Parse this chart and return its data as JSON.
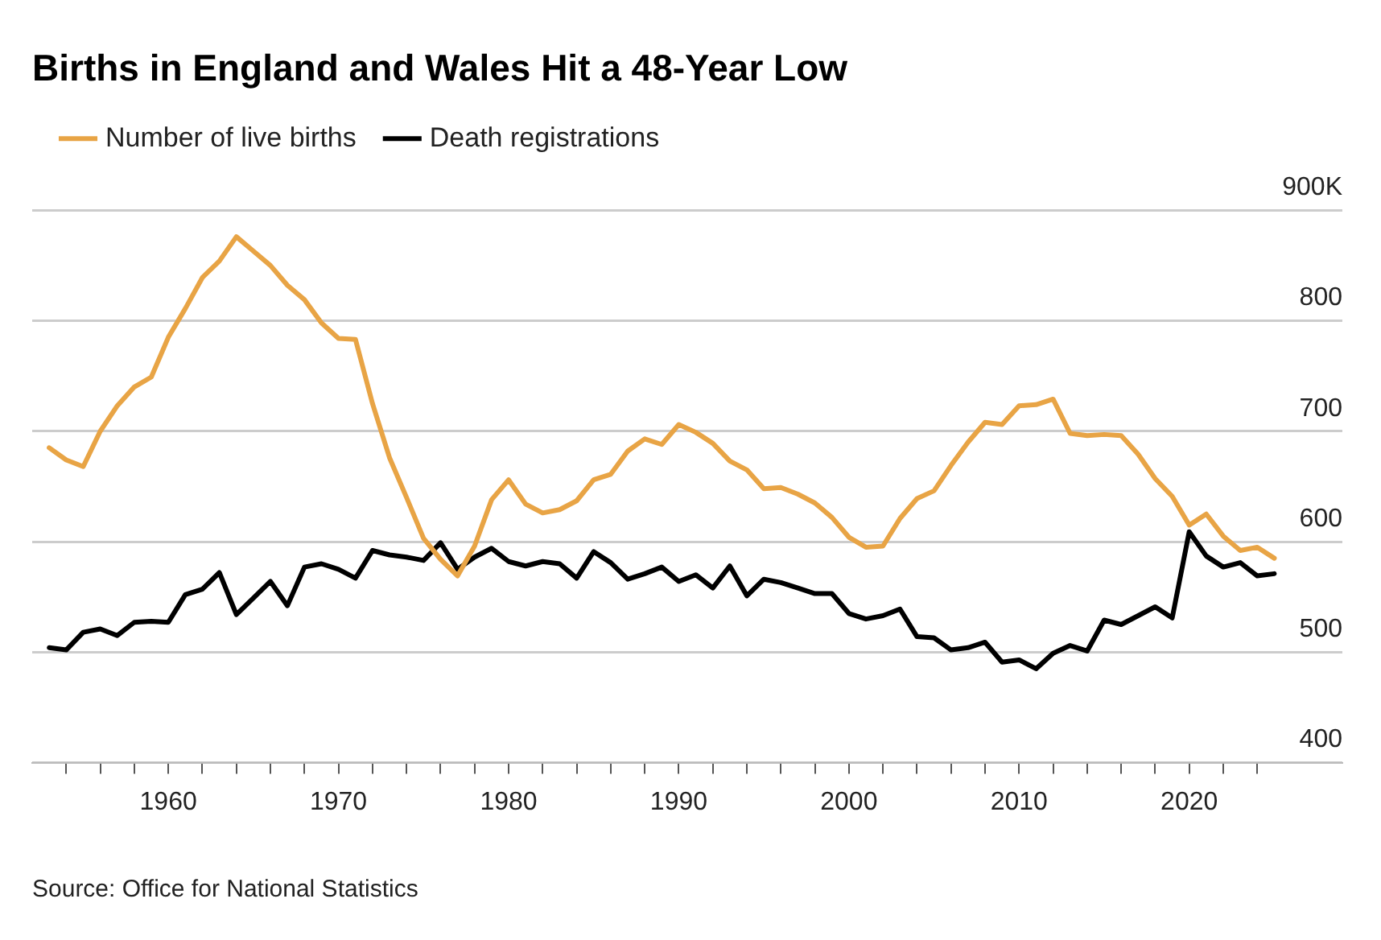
{
  "chart_data": {
    "type": "line",
    "title": "Births in England and Wales Hit a 48-Year Low",
    "annotations": [
      "Source: Office for National Statistics"
    ],
    "x": [
      1953,
      1954,
      1955,
      1956,
      1957,
      1958,
      1959,
      1960,
      1961,
      1962,
      1963,
      1964,
      1965,
      1966,
      1967,
      1968,
      1969,
      1970,
      1971,
      1972,
      1973,
      1974,
      1975,
      1976,
      1977,
      1978,
      1979,
      1980,
      1981,
      1982,
      1983,
      1984,
      1985,
      1986,
      1987,
      1988,
      1989,
      1990,
      1991,
      1992,
      1993,
      1994,
      1995,
      1996,
      1997,
      1998,
      1999,
      2000,
      2001,
      2002,
      2003,
      2004,
      2005,
      2006,
      2007,
      2008,
      2009,
      2010,
      2011,
      2012,
      2013,
      2014,
      2015,
      2016,
      2017,
      2018,
      2019,
      2020,
      2021,
      2022,
      2023,
      2024,
      2025
    ],
    "series": [
      {
        "name": "Number of live births",
        "color": "#e8a445",
        "values": [
          685,
          674,
          668,
          700,
          723,
          740,
          749,
          785,
          811,
          839,
          854,
          876,
          863,
          850,
          832,
          819,
          798,
          784,
          783,
          725,
          676,
          640,
          603,
          584,
          569,
          596,
          638,
          656,
          634,
          626,
          629,
          637,
          656,
          661,
          682,
          693,
          688,
          706,
          699,
          689,
          673,
          665,
          648,
          649,
          643,
          635,
          622,
          604,
          595,
          596,
          621,
          639,
          646,
          669,
          690,
          708,
          706,
          723,
          724,
          729,
          698,
          696,
          697,
          696,
          679,
          657,
          641,
          615,
          625,
          605,
          592,
          595,
          585
        ]
      },
      {
        "name": "Death registrations",
        "color": "#000000",
        "values": [
          504,
          502,
          518,
          521,
          515,
          527,
          528,
          527,
          552,
          557,
          572,
          534,
          549,
          564,
          542,
          577,
          580,
          575,
          567,
          592,
          588,
          586,
          583,
          599,
          575,
          586,
          594,
          582,
          578,
          582,
          580,
          567,
          591,
          581,
          566,
          571,
          577,
          564,
          570,
          558,
          578,
          551,
          566,
          563,
          558,
          553,
          553,
          535,
          530,
          533,
          539,
          514,
          513,
          502,
          504,
          509,
          491,
          493,
          485,
          499,
          506,
          501,
          529,
          525,
          533,
          541,
          531,
          609,
          587,
          577,
          581,
          569,
          571
        ]
      }
    ],
    "xlim": [
      1952,
      2029
    ],
    "xticks": [
      {
        "value": 1954,
        "label": null
      },
      {
        "value": 1956,
        "label": null
      },
      {
        "value": 1958,
        "label": null
      },
      1960,
      {
        "value": 1962,
        "label": null
      },
      {
        "value": 1964,
        "label": null
      },
      {
        "value": 1966,
        "label": null
      },
      {
        "value": 1968,
        "label": null
      },
      1970,
      {
        "value": 1972,
        "label": null
      },
      {
        "value": 1974,
        "label": null
      },
      {
        "value": 1976,
        "label": null
      },
      {
        "value": 1978,
        "label": null
      },
      1980,
      {
        "value": 1982,
        "label": null
      },
      {
        "value": 1984,
        "label": null
      },
      {
        "value": 1986,
        "label": null
      },
      {
        "value": 1988,
        "label": null
      },
      1990,
      {
        "value": 1992,
        "label": null
      },
      {
        "value": 1994,
        "label": null
      },
      {
        "value": 1996,
        "label": null
      },
      {
        "value": 1998,
        "label": null
      },
      2000,
      {
        "value": 2002,
        "label": null
      },
      {
        "value": 2004,
        "label": null
      },
      {
        "value": 2006,
        "label": null
      },
      {
        "value": 2008,
        "label": null
      },
      2010,
      {
        "value": 2012,
        "label": null
      },
      {
        "value": 2014,
        "label": null
      },
      {
        "value": 2016,
        "label": null
      },
      {
        "value": 2018,
        "label": null
      },
      2020,
      {
        "value": 2022,
        "label": null
      },
      {
        "value": 2024,
        "label": null
      }
    ],
    "ylim": [
      400,
      900
    ],
    "yticks": [
      400,
      500,
      600,
      700,
      800,
      {
        "value": 900,
        "label": "900K"
      }
    ],
    "grid": "y",
    "legend": "top left",
    "line_style": "solid",
    "marker": "none"
  }
}
